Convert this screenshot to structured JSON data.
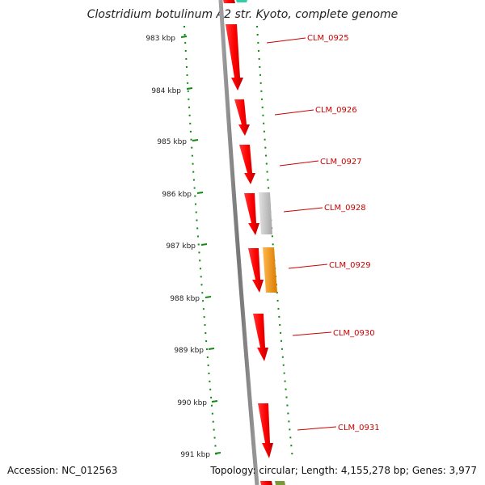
{
  "title": "Clostridium botulinum A2 str. Kyoto, complete genome",
  "footer": {
    "accession": "Accession: NC_012563",
    "summary": "Topology: circular; Length: 4,155,278 bp; Genes: 3,977"
  },
  "ticks": [
    "983 kbp",
    "984 kbp",
    "985 kbp",
    "986 kbp",
    "987 kbp",
    "988 kbp",
    "989 kbp",
    "990 kbp",
    "991 kbp"
  ],
  "genes": [
    {
      "label": "CLM_0925",
      "color": "#ff0000",
      "lane": "main"
    },
    {
      "label": "CLM_0926",
      "color": "#ff0000",
      "lane": "main"
    },
    {
      "label": "CLM_0927",
      "color": "#ff0000",
      "lane": "main"
    },
    {
      "label": "CLM_0928",
      "color": "#ff0000",
      "lane": "main"
    },
    {
      "label": "CLM_0929",
      "color": "#ff0000",
      "lane": "main"
    },
    {
      "label": "CLM_0930",
      "color": "#ff0000",
      "lane": "main"
    },
    {
      "label": "CLM_0931",
      "color": "#ff0000",
      "lane": "main"
    }
  ],
  "features": [
    {
      "kind": "grey-feature",
      "color": "#c8c8c8"
    },
    {
      "kind": "orange-feature",
      "color": "#ff9900"
    },
    {
      "kind": "teal-feature",
      "color": "#33ccaa"
    },
    {
      "kind": "olive-feature",
      "color": "#7a9a3a"
    }
  ],
  "colors": {
    "backbone": "#888888",
    "ticks": "#118811",
    "gene_label": "#cc0000",
    "leader_line": "#cc0000"
  }
}
